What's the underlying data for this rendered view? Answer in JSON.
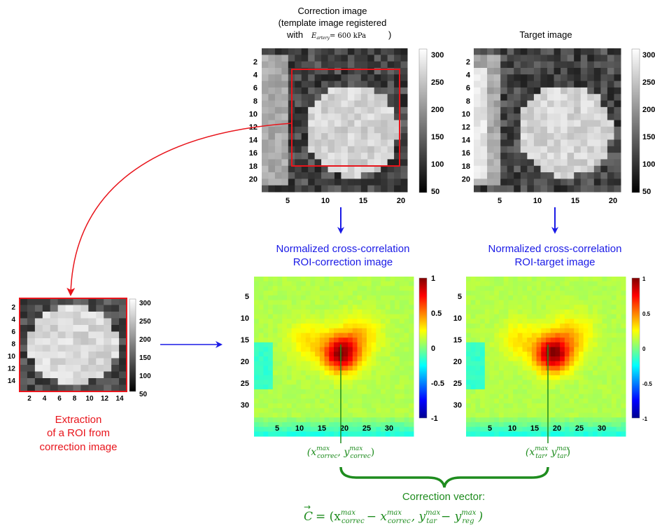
{
  "colors": {
    "red": "#e8141b",
    "blue": "#1a1ae6",
    "green": "#1e8c1e",
    "black": "#000000"
  },
  "correction_panel": {
    "title_line1": "Correction image",
    "title_line2": "(template image registered",
    "title_line3_prefix": "with",
    "title_line3_math": "E",
    "title_line3_math_sub": "artery",
    "title_line3_math_rhs": "= 600 kPa",
    "title_line3_suffix": ")",
    "y_ticks": [
      "2",
      "4",
      "6",
      "8",
      "10",
      "12",
      "14",
      "16",
      "18",
      "20"
    ],
    "x_ticks": [
      "5",
      "10",
      "15",
      "20"
    ],
    "colorbar_ticks": [
      "300",
      "250",
      "200",
      "150",
      "100",
      "50"
    ]
  },
  "target_panel": {
    "title": "Target image",
    "y_ticks": [
      "2",
      "4",
      "6",
      "8",
      "10",
      "12",
      "14",
      "16",
      "18",
      "20"
    ],
    "x_ticks": [
      "5",
      "10",
      "15",
      "20"
    ],
    "colorbar_ticks": [
      "300",
      "250",
      "200",
      "150",
      "100",
      "50"
    ]
  },
  "roi_panel": {
    "y_ticks": [
      "2",
      "4",
      "6",
      "8",
      "10",
      "12",
      "14"
    ],
    "x_ticks": [
      "2",
      "4",
      "6",
      "8",
      "10",
      "12",
      "14"
    ],
    "colorbar_ticks": [
      "300",
      "250",
      "200",
      "150",
      "100",
      "50"
    ],
    "caption_line1": "Extraction",
    "caption_line2": "of a ROI from",
    "caption_line3": "correction image"
  },
  "ncc_correction": {
    "title_line1": "Normalized cross-correlation",
    "title_line2": "ROI-correction image",
    "y_ticks": [
      "5",
      "10",
      "15",
      "20",
      "25",
      "30"
    ],
    "x_ticks": [
      "5",
      "10",
      "15",
      "20",
      "25",
      "30"
    ],
    "colorbar_ticks": [
      "1",
      "0.5",
      "0",
      "-0.5",
      "-1"
    ],
    "peak_label": "(x",
    "peak_label_sub": "correc",
    "peak_label_sup": "max",
    "peak_label_y": "y",
    "peak_label_y_sub": "correc",
    "peak_label_y_sup": "max"
  },
  "ncc_target": {
    "title_line1": "Normalized cross-correlation",
    "title_line2": "ROI-target image",
    "y_ticks": [
      "5",
      "10",
      "15",
      "20",
      "25",
      "30"
    ],
    "x_ticks": [
      "5",
      "10",
      "15",
      "20",
      "25",
      "30"
    ],
    "colorbar_ticks": [
      "1",
      "0.5",
      "0",
      "-0.5",
      "-1"
    ],
    "peak_label": "(x",
    "peak_label_sub": "tar",
    "peak_label_sup": "max",
    "peak_label_y": "y",
    "peak_label_y_sub": "tar",
    "peak_label_y_sup": "max"
  },
  "correction_vector": {
    "label": "Correction vector:",
    "c": "C",
    "eq": "= (x",
    "t1_sub": "correc",
    "t1_sup": "max",
    "minus1": "− x",
    "t2_sub": "correc",
    "t2_sup": "max",
    "comma": ", y",
    "t3_sub": "tar",
    "t3_sup": "max",
    "minus2": "− y",
    "t4_sub": "reg",
    "t4_sup": "max",
    "close": ")"
  }
}
